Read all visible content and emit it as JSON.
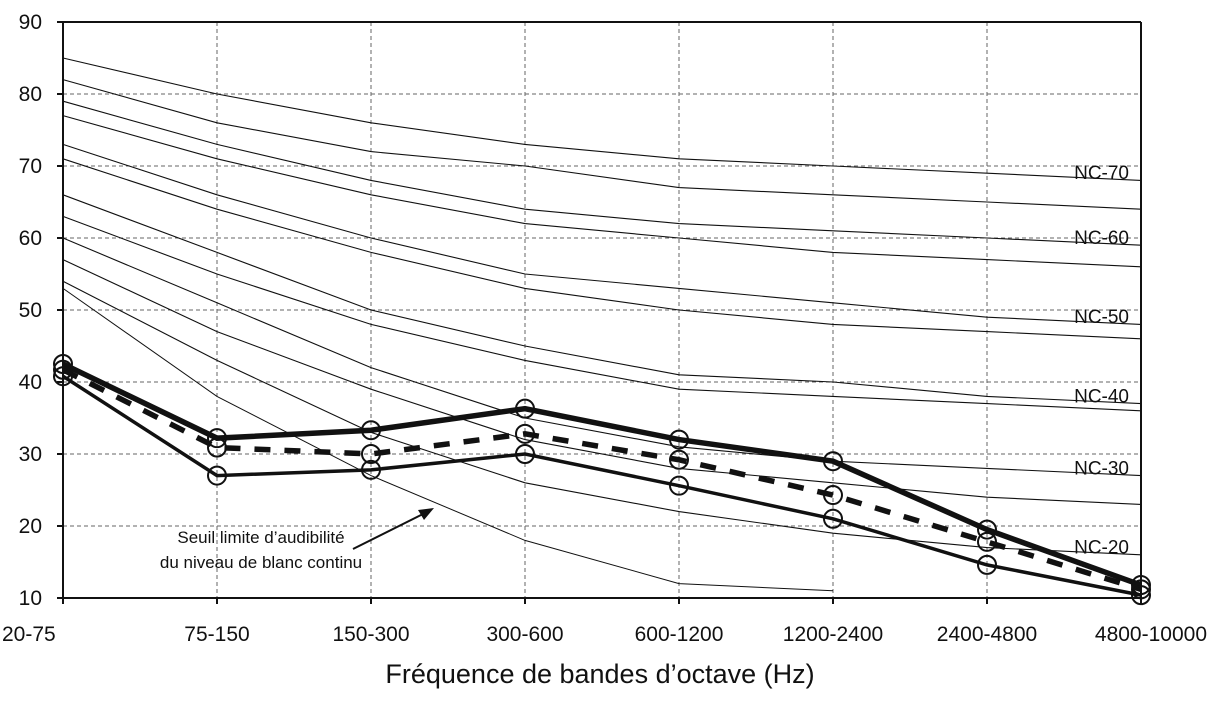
{
  "chart_data": {
    "type": "line",
    "title": "",
    "xlabel": "Fréquence de bandes d’octave (Hz)",
    "ylabel": "",
    "categories": [
      "20-75",
      "75-150",
      "150-300",
      "300-600",
      "600-1200",
      "1200-2400",
      "2400-4800",
      "4800-10000"
    ],
    "ylim": [
      10,
      90
    ],
    "yticks": [
      10,
      20,
      30,
      40,
      50,
      60,
      70,
      80,
      90
    ],
    "grid": true,
    "nc_curves": [
      {
        "label": "NC-70",
        "values": [
          85,
          80,
          76,
          73,
          71,
          70,
          69,
          68
        ]
      },
      {
        "label": "",
        "values": [
          82,
          76,
          72,
          70,
          67,
          66,
          65,
          64
        ]
      },
      {
        "label": "NC-60",
        "values": [
          79,
          73,
          68,
          64,
          62,
          61,
          60,
          59
        ]
      },
      {
        "label": "",
        "values": [
          77,
          71,
          66,
          62,
          60,
          58,
          57,
          56
        ]
      },
      {
        "label": "NC-50",
        "values": [
          73,
          66,
          60,
          55,
          53,
          51,
          49,
          48
        ]
      },
      {
        "label": "",
        "values": [
          71,
          64,
          58,
          53,
          50,
          48,
          47,
          46
        ]
      },
      {
        "label": "NC-40",
        "values": [
          66,
          58,
          50,
          45,
          41,
          40,
          38,
          37
        ]
      },
      {
        "label": "",
        "values": [
          63,
          55,
          48,
          43,
          39,
          38,
          37,
          36
        ]
      },
      {
        "label": "NC-30",
        "values": [
          60,
          51,
          42,
          35,
          31,
          29,
          28,
          27
        ]
      },
      {
        "label": "",
        "values": [
          57,
          47,
          39,
          32,
          28,
          26,
          24,
          23
        ]
      },
      {
        "label": "NC-20",
        "values": [
          54,
          43,
          33,
          26,
          22,
          19,
          17,
          16
        ]
      }
    ],
    "threshold": {
      "values": [
        53,
        38,
        27,
        18,
        12,
        11
      ]
    },
    "measured_series": [
      {
        "values": [
          42.5,
          32.2,
          33.3,
          36.3,
          32.0,
          29.0,
          19.5,
          11.8
        ],
        "style": "thick"
      },
      {
        "values": [
          41.7,
          30.9,
          30.0,
          32.8,
          29.2,
          24.3,
          17.8,
          11.2
        ],
        "style": "dashed"
      },
      {
        "values": [
          40.8,
          27.0,
          27.8,
          30.0,
          25.6,
          21.0,
          14.6,
          10.4
        ],
        "style": "solid"
      }
    ],
    "annotation": {
      "line1": "Seuil limite d’audibilité",
      "line2": "du niveau de blanc continu"
    }
  }
}
